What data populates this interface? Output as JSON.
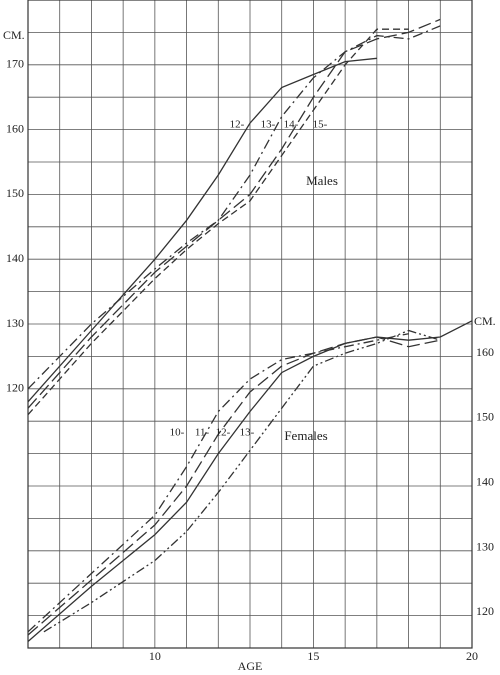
{
  "chart_data": {
    "type": "line",
    "xlabel": "AGE",
    "ylabel": "CM.",
    "y2label": "CM.",
    "annotations": [
      "Males",
      "Females"
    ],
    "xlim": [
      6,
      20
    ],
    "xticks": [
      10,
      15,
      20
    ],
    "xgrid": [
      6,
      7,
      8,
      9,
      10,
      11,
      12,
      13,
      14,
      15,
      16,
      17,
      18,
      19,
      20
    ],
    "ylim": [
      80,
      180
    ],
    "yticks": [
      120,
      130,
      140,
      150,
      160,
      170
    ],
    "ygrid": [
      80,
      85,
      90,
      95,
      100,
      105,
      110,
      115,
      120,
      125,
      130,
      135,
      140,
      145,
      150,
      155,
      160,
      165,
      170,
      175,
      180
    ],
    "y2lim": [
      114.5,
      214.5
    ],
    "y2ticks": [
      120,
      130,
      140,
      150,
      160
    ],
    "grid": true,
    "color": "#333333",
    "series": [
      {
        "name": "12-",
        "dash": "solid",
        "x": [
          6,
          8,
          10,
          11,
          12,
          13,
          14,
          15,
          16,
          17
        ],
        "values": [
          118,
          129,
          140,
          146,
          153,
          161,
          166.5,
          168.5,
          170.5,
          171
        ]
      },
      {
        "name": "13-",
        "dash": "dash-dot",
        "x": [
          6,
          8,
          10,
          11,
          12,
          13,
          14,
          15,
          16,
          17,
          18,
          19
        ],
        "values": [
          120,
          130,
          138.5,
          142.5,
          146,
          153,
          162,
          168,
          172,
          174.5,
          174,
          176
        ]
      },
      {
        "name": "14-",
        "dash": "long-dash",
        "x": [
          6,
          8,
          10,
          11,
          12,
          13,
          14,
          15,
          16,
          17,
          18,
          19
        ],
        "values": [
          117,
          128,
          138,
          142,
          146,
          150,
          157,
          165,
          172,
          174,
          175,
          177
        ]
      },
      {
        "name": "15-",
        "dash": "dashed",
        "x": [
          6,
          8,
          10,
          11,
          12,
          13,
          14,
          15,
          16,
          17,
          18
        ],
        "values": [
          116,
          127,
          137,
          141.5,
          145.5,
          149,
          156,
          163,
          170,
          175.5,
          175.5
        ]
      },
      {
        "name": "10-",
        "dash": "dash-dot",
        "axis": "y2",
        "x": [
          6,
          8,
          10,
          11,
          12,
          13,
          14,
          15,
          16,
          17,
          18
        ],
        "values": [
          117,
          126,
          135,
          142.5,
          151,
          156,
          159,
          160,
          161,
          162,
          163
        ]
      },
      {
        "name": "11-",
        "dash": "long-dash",
        "axis": "y2",
        "x": [
          6,
          8,
          10,
          11,
          12,
          13,
          14,
          15,
          16,
          17,
          18,
          19
        ],
        "values": [
          116.5,
          125,
          133.5,
          139.5,
          147.5,
          154,
          158,
          160,
          161.5,
          162.5,
          161,
          162
        ]
      },
      {
        "name": "12-",
        "dash": "solid",
        "axis": "y2",
        "x": [
          6,
          8,
          10,
          11,
          12,
          13,
          14,
          15,
          16,
          17,
          18,
          19,
          20
        ],
        "values": [
          115.5,
          124,
          132,
          137,
          144.5,
          151,
          157,
          159.5,
          161.5,
          162.5,
          162,
          162.5,
          165
        ]
      },
      {
        "name": "13-",
        "dash": "dash-dot-dot",
        "axis": "y2",
        "x": [
          6.5,
          8,
          10,
          11,
          12,
          13,
          14,
          15,
          16,
          17,
          18,
          19
        ],
        "values": [
          117,
          121.5,
          128,
          132.5,
          138.5,
          145,
          151.5,
          158,
          160,
          161.5,
          163.5,
          162
        ]
      }
    ]
  }
}
